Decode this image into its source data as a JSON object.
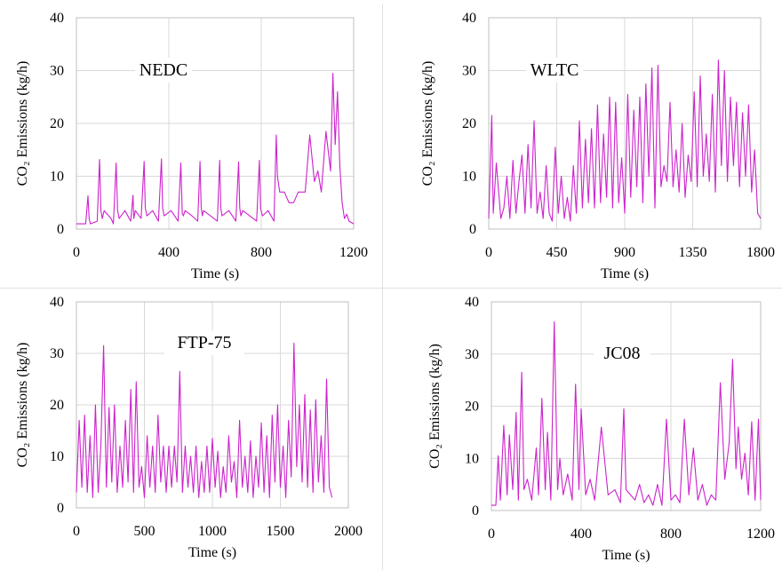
{
  "figure": {
    "series_color": "#cc22cc",
    "grid_color": "#d9d9d9"
  },
  "chart_data": [
    {
      "type": "line",
      "label": "NEDC",
      "xlabel": "Time (s)",
      "ylabel": "CO₂ Emissions (kg/h)",
      "xlim": [
        0,
        1200
      ],
      "ylim": [
        0,
        40
      ],
      "xticks": [
        0,
        400,
        800,
        1200
      ],
      "xtick_labels": [
        "0",
        "400",
        "800",
        "1200"
      ],
      "yticks": [
        0,
        10,
        20,
        30,
        40
      ],
      "ytick_labels": [
        "0",
        "10",
        "20",
        "30",
        "40"
      ],
      "grid": true,
      "series": [
        {
          "x": [
            0,
            40,
            50,
            55,
            60,
            90,
            100,
            106,
            112,
            120,
            150,
            160,
            172,
            178,
            185,
            210,
            235,
            245,
            248,
            255,
            280,
            293,
            298,
            305,
            330,
            355,
            368,
            373,
            380,
            410,
            440,
            452,
            458,
            463,
            470,
            500,
            525,
            535,
            540,
            545,
            550,
            580,
            610,
            620,
            625,
            630,
            660,
            690,
            702,
            707,
            712,
            720,
            750,
            780,
            792,
            797,
            805,
            830,
            855,
            865,
            870,
            880,
            900,
            920,
            940,
            960,
            990,
            1010,
            1030,
            1045,
            1060,
            1080,
            1100,
            1110,
            1120,
            1130,
            1140,
            1150,
            1160,
            1170,
            1180,
            1200
          ],
          "y": [
            1,
            1,
            6.3,
            2,
            1,
            1.5,
            13.2,
            3.5,
            2,
            3.5,
            2,
            1,
            12.5,
            3.5,
            2,
            3.5,
            1.5,
            6.4,
            2,
            3.5,
            2,
            12.8,
            4,
            2.5,
            3.5,
            1.5,
            13.3,
            4,
            2.5,
            3.5,
            1.5,
            12.5,
            3,
            2.5,
            3.5,
            2.5,
            1.5,
            12.8,
            4,
            2.5,
            3.5,
            2.5,
            1.5,
            13,
            4,
            2.5,
            3.5,
            1.5,
            12.7,
            4,
            2.5,
            3.5,
            2.5,
            1.5,
            13,
            4,
            2.5,
            3.5,
            1.5,
            17.8,
            10,
            7,
            7,
            5,
            5,
            7,
            7,
            17.8,
            9,
            11,
            7,
            18.5,
            11,
            29.5,
            16,
            26,
            12,
            5,
            2,
            2.8,
            1.5,
            1
          ]
        }
      ]
    },
    {
      "type": "line",
      "label": "WLTC",
      "xlabel": "Time (s)",
      "ylabel": "CO₂ Emissions (kg/h)",
      "xlim": [
        0,
        1800
      ],
      "ylim": [
        0,
        40
      ],
      "xticks": [
        0,
        450,
        900,
        1350,
        1800
      ],
      "xtick_labels": [
        "0",
        "450",
        "900",
        "1350",
        "1800"
      ],
      "yticks": [
        0,
        10,
        20,
        30,
        40
      ],
      "ytick_labels": [
        "0",
        "10",
        "20",
        "30",
        "40"
      ],
      "grid": true,
      "series": [
        {
          "x": [
            0,
            20,
            30,
            50,
            80,
            100,
            120,
            140,
            160,
            180,
            200,
            220,
            240,
            260,
            280,
            300,
            320,
            340,
            360,
            380,
            400,
            420,
            440,
            460,
            480,
            500,
            520,
            540,
            560,
            580,
            600,
            620,
            640,
            660,
            680,
            700,
            720,
            740,
            760,
            780,
            800,
            820,
            840,
            860,
            880,
            900,
            920,
            940,
            960,
            980,
            1000,
            1020,
            1040,
            1060,
            1080,
            1100,
            1120,
            1140,
            1160,
            1180,
            1200,
            1220,
            1240,
            1260,
            1280,
            1300,
            1320,
            1340,
            1360,
            1380,
            1400,
            1420,
            1440,
            1460,
            1480,
            1500,
            1520,
            1540,
            1560,
            1580,
            1600,
            1620,
            1640,
            1660,
            1680,
            1700,
            1720,
            1740,
            1760,
            1780,
            1800
          ],
          "y": [
            2,
            21.5,
            3,
            12.5,
            2,
            4,
            10,
            2,
            13,
            3,
            9,
            14,
            3,
            16,
            4,
            20.5,
            3,
            7,
            2,
            12,
            3,
            1.5,
            15.5,
            3,
            10,
            2,
            6,
            1.5,
            12,
            3,
            20.5,
            4,
            17,
            5,
            19,
            4,
            23.5,
            5,
            18,
            6,
            25,
            4,
            24,
            5,
            13.5,
            3,
            25.5,
            6,
            22.5,
            8,
            25,
            5,
            27.5,
            10,
            30.5,
            4,
            31,
            8,
            12,
            9,
            24,
            8,
            15,
            7,
            20,
            6,
            14,
            9,
            26,
            8,
            29,
            10,
            18,
            9,
            25.5,
            7,
            32,
            12,
            30,
            9,
            25,
            12,
            24,
            8,
            22,
            10,
            23.5,
            7,
            15,
            3,
            2
          ]
        }
      ]
    },
    {
      "type": "line",
      "label": "FTP-75",
      "xlabel": "Time (s)",
      "ylabel": "CO₂ Emissions (kg/h)",
      "xlim": [
        0,
        2000
      ],
      "ylim": [
        0,
        40
      ],
      "xticks": [
        0,
        500,
        1000,
        1500,
        2000
      ],
      "xtick_labels": [
        "0",
        "500",
        "1000",
        "1500",
        "2000"
      ],
      "yticks": [
        0,
        10,
        20,
        30,
        40
      ],
      "ytick_labels": [
        "0",
        "10",
        "20",
        "30",
        "40"
      ],
      "grid": true,
      "series": [
        {
          "x": [
            0,
            20,
            40,
            60,
            80,
            100,
            120,
            140,
            160,
            180,
            200,
            220,
            240,
            260,
            280,
            300,
            320,
            340,
            360,
            380,
            400,
            420,
            440,
            460,
            480,
            500,
            520,
            540,
            560,
            580,
            600,
            620,
            640,
            660,
            680,
            700,
            720,
            740,
            760,
            780,
            800,
            820,
            840,
            860,
            880,
            900,
            920,
            940,
            960,
            980,
            1000,
            1020,
            1040,
            1060,
            1080,
            1100,
            1120,
            1140,
            1160,
            1180,
            1200,
            1220,
            1240,
            1260,
            1280,
            1300,
            1320,
            1340,
            1360,
            1380,
            1400,
            1420,
            1440,
            1460,
            1480,
            1500,
            1520,
            1540,
            1560,
            1580,
            1600,
            1620,
            1640,
            1660,
            1680,
            1700,
            1720,
            1740,
            1760,
            1780,
            1800,
            1820,
            1840,
            1860,
            1880
          ],
          "y": [
            3,
            17,
            4,
            18,
            3,
            14,
            2,
            20,
            3,
            12,
            31.5,
            4,
            19.5,
            5,
            20,
            3,
            12,
            4,
            17,
            5,
            23,
            3,
            24.5,
            4,
            8,
            2,
            14,
            4,
            12,
            3,
            18,
            5,
            12,
            3,
            12,
            4,
            12,
            5,
            26.5,
            3,
            12,
            4,
            10,
            3,
            12,
            2,
            9,
            3,
            12,
            3,
            13.5,
            4,
            11,
            2,
            8,
            3,
            14,
            5,
            9,
            2,
            17,
            4,
            10,
            3,
            13,
            2,
            10,
            4,
            16.5,
            3,
            14,
            2,
            18,
            5,
            20,
            4,
            12,
            2,
            17,
            6,
            32,
            8,
            20,
            5,
            22,
            4,
            19,
            3,
            21,
            5,
            14,
            3,
            25,
            4,
            2
          ]
        }
      ]
    },
    {
      "type": "line",
      "label": "JC08",
      "xlabel": "Time (s)",
      "ylabel": "CO₂ Emissions (kg/h)",
      "xlim": [
        0,
        1200
      ],
      "ylim": [
        0,
        40
      ],
      "xticks": [
        0,
        400,
        800,
        1200
      ],
      "xtick_labels": [
        "0",
        "400",
        "800",
        "1200"
      ],
      "yticks": [
        0,
        10,
        20,
        30,
        40
      ],
      "ytick_labels": [
        "0",
        "10",
        "20",
        "30",
        "40"
      ],
      "grid": true,
      "series": [
        {
          "x": [
            0,
            20,
            30,
            40,
            55,
            70,
            80,
            95,
            110,
            120,
            135,
            145,
            160,
            180,
            200,
            210,
            225,
            240,
            250,
            265,
            280,
            295,
            305,
            320,
            340,
            360,
            375,
            390,
            400,
            420,
            440,
            460,
            490,
            520,
            550,
            575,
            590,
            600,
            620,
            640,
            660,
            680,
            700,
            720,
            740,
            760,
            780,
            800,
            820,
            840,
            860,
            880,
            900,
            920,
            940,
            960,
            980,
            1000,
            1020,
            1040,
            1060,
            1075,
            1090,
            1100,
            1115,
            1130,
            1145,
            1160,
            1175,
            1190,
            1200
          ],
          "y": [
            1,
            1,
            10.5,
            2,
            16.3,
            3,
            14.5,
            4,
            18.8,
            2,
            26.5,
            4,
            6,
            2,
            12,
            3,
            21.5,
            4,
            15,
            2,
            36.2,
            4,
            10,
            3,
            7,
            2,
            24.2,
            4,
            19.5,
            3,
            6,
            2,
            16,
            3,
            4,
            1.5,
            19.5,
            4,
            3,
            2,
            5,
            1.5,
            3,
            1,
            5,
            1,
            17.5,
            2,
            3,
            1.5,
            17.5,
            3,
            12,
            2,
            5,
            1,
            3,
            2,
            24.5,
            6,
            13,
            29,
            8,
            16,
            6,
            11,
            3,
            17,
            2,
            17.5,
            2
          ]
        }
      ]
    }
  ]
}
